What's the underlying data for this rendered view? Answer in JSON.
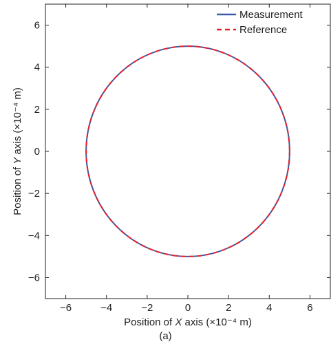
{
  "chart_data": {
    "type": "line",
    "title": "",
    "xlabel": {
      "pre": "Position of ",
      "var": "X",
      "post": " axis (×10⁻⁴ m)"
    },
    "ylabel": {
      "pre": "Position of ",
      "var": "Y",
      "post": " axis (×10⁻⁴ m)"
    },
    "caption": "(a)",
    "xlim": [
      -7,
      7
    ],
    "ylim": [
      -7,
      7
    ],
    "xticks": [
      -6,
      -4,
      -2,
      0,
      2,
      4,
      6
    ],
    "yticks": [
      -6,
      -4,
      -2,
      0,
      2,
      4,
      6
    ],
    "xticklabels": [
      "−6",
      "−4",
      "−2",
      "0",
      "2",
      "4",
      "6"
    ],
    "yticklabels": [
      "−6",
      "−4",
      "−2",
      "0",
      "2",
      "4",
      "6"
    ],
    "grid": false,
    "legend_position": "top-right",
    "series": [
      {
        "name": "Measurement",
        "style": "solid",
        "color": "#3a5ba7",
        "shape": "circle",
        "center": [
          0,
          0
        ],
        "radius": 5
      },
      {
        "name": "Reference",
        "style": "dashed",
        "color": "#e8202a",
        "shape": "circle",
        "center": [
          0,
          0
        ],
        "radius": 5
      }
    ]
  }
}
